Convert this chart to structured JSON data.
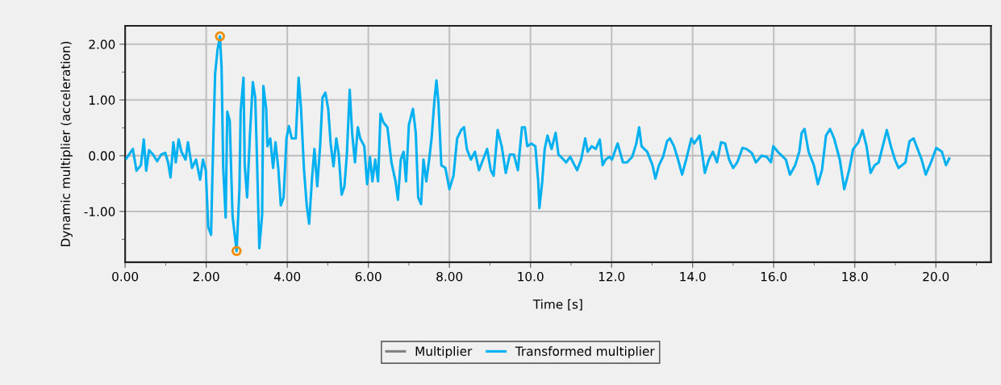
{
  "chart_data": {
    "type": "line",
    "xlabel": "Time [s]",
    "ylabel": "Dynamic multiplier (acceleration)",
    "xlim": [
      0,
      21.36
    ],
    "ylim": [
      -1.91,
      2.33
    ],
    "xticks": [
      {
        "value": 0,
        "label": "0.00"
      },
      {
        "value": 1,
        "label": null
      },
      {
        "value": 2,
        "label": "2.00"
      },
      {
        "value": 3,
        "label": null
      },
      {
        "value": 4,
        "label": "4.00"
      },
      {
        "value": 5,
        "label": null
      },
      {
        "value": 6,
        "label": "6.00"
      },
      {
        "value": 7,
        "label": null
      },
      {
        "value": 8,
        "label": "8.00"
      },
      {
        "value": 9,
        "label": null
      },
      {
        "value": 10,
        "label": "10.0"
      },
      {
        "value": 11,
        "label": null
      },
      {
        "value": 12,
        "label": "12.0"
      },
      {
        "value": 13,
        "label": null
      },
      {
        "value": 14,
        "label": "14.0"
      },
      {
        "value": 15,
        "label": null
      },
      {
        "value": 16,
        "label": "16.0"
      },
      {
        "value": 17,
        "label": null
      },
      {
        "value": 18,
        "label": "18.0"
      },
      {
        "value": 19,
        "label": null
      },
      {
        "value": 20,
        "label": "20.0"
      },
      {
        "value": 21,
        "label": null
      }
    ],
    "yticks": [
      {
        "value": -1.5,
        "label": null
      },
      {
        "value": -1,
        "label": "-1.00"
      },
      {
        "value": -0.5,
        "label": null
      },
      {
        "value": 0,
        "label": "0.00"
      },
      {
        "value": 0.5,
        "label": null
      },
      {
        "value": 1,
        "label": "1.00"
      },
      {
        "value": 1.5,
        "label": null
      },
      {
        "value": 2,
        "label": "2.00"
      }
    ],
    "grid": true,
    "legend": "bottom",
    "series": [
      {
        "name": "Multiplier",
        "color": "#808080"
      },
      {
        "name": "Transformed multiplier",
        "color": "#00b0f0",
        "x": [
          0.03,
          0.19,
          0.28,
          0.39,
          0.46,
          0.52,
          0.59,
          0.69,
          0.79,
          0.89,
          0.99,
          1.06,
          1.12,
          1.19,
          1.25,
          1.32,
          1.39,
          1.49,
          1.55,
          1.65,
          1.75,
          1.85,
          1.92,
          1.99,
          2.05,
          2.12,
          2.15,
          2.18,
          2.22,
          2.28,
          2.34,
          2.38,
          2.42,
          2.48,
          2.52,
          2.58,
          2.65,
          2.72,
          2.75,
          2.82,
          2.85,
          2.92,
          2.95,
          3.01,
          3.08,
          3.15,
          3.21,
          3.25,
          3.31,
          3.38,
          3.41,
          3.48,
          3.51,
          3.58,
          3.65,
          3.71,
          3.78,
          3.84,
          3.91,
          3.98,
          4.04,
          4.11,
          4.21,
          4.28,
          4.34,
          4.41,
          4.48,
          4.54,
          4.61,
          4.67,
          4.74,
          4.81,
          4.87,
          4.94,
          5.01,
          5.07,
          5.14,
          5.21,
          5.27,
          5.34,
          5.41,
          5.47,
          5.54,
          5.6,
          5.67,
          5.74,
          5.8,
          5.9,
          5.97,
          6.04,
          6.1,
          6.17,
          6.24,
          6.3,
          6.37,
          6.47,
          6.57,
          6.67,
          6.73,
          6.8,
          6.87,
          6.93,
          7.0,
          7.1,
          7.17,
          7.23,
          7.3,
          7.36,
          7.43,
          7.5,
          7.56,
          7.63,
          7.68,
          7.73,
          7.8,
          7.9,
          8.0,
          8.1,
          8.19,
          8.29,
          8.36,
          8.43,
          8.53,
          8.63,
          8.73,
          8.83,
          8.93,
          9.02,
          9.09,
          9.19,
          9.29,
          9.39,
          9.49,
          9.59,
          9.69,
          9.79,
          9.86,
          9.92,
          10.02,
          10.12,
          10.19,
          10.22,
          10.29,
          10.35,
          10.42,
          10.52,
          10.62,
          10.69,
          10.75,
          10.88,
          10.98,
          11.15,
          11.25,
          11.35,
          11.41,
          11.51,
          11.61,
          11.71,
          11.78,
          11.85,
          11.95,
          12.01,
          12.15,
          12.28,
          12.38,
          12.51,
          12.61,
          12.68,
          12.74,
          12.88,
          13.01,
          13.08,
          13.17,
          13.27,
          13.37,
          13.44,
          13.54,
          13.64,
          13.74,
          13.84,
          13.97,
          14.04,
          14.17,
          14.24,
          14.3,
          14.4,
          14.5,
          14.6,
          14.7,
          14.8,
          14.9,
          15.0,
          15.1,
          15.23,
          15.33,
          15.46,
          15.56,
          15.7,
          15.83,
          15.93,
          15.99,
          16.1,
          16.3,
          16.4,
          16.53,
          16.63,
          16.69,
          16.76,
          16.86,
          16.99,
          17.09,
          17.19,
          17.29,
          17.39,
          17.49,
          17.63,
          17.74,
          17.86,
          17.96,
          18.09,
          18.19,
          18.29,
          18.39,
          18.49,
          18.59,
          18.69,
          18.79,
          18.89,
          18.99,
          19.08,
          19.25,
          19.35,
          19.45,
          19.55,
          19.65,
          19.75,
          19.88,
          20.01,
          20.15,
          20.25,
          20.33
        ],
        "values": [
          -0.05,
          0.12,
          -0.27,
          -0.17,
          0.29,
          -0.27,
          0.1,
          0.02,
          -0.1,
          0.02,
          0.05,
          -0.12,
          -0.39,
          0.24,
          -0.12,
          0.29,
          0.07,
          -0.07,
          0.24,
          -0.22,
          -0.07,
          -0.43,
          -0.07,
          -0.26,
          -1.28,
          -1.42,
          -0.46,
          0.39,
          1.47,
          1.9,
          2.14,
          1.57,
          -0.22,
          -1.11,
          0.79,
          0.63,
          -1.08,
          -1.52,
          -1.71,
          -0.6,
          0.79,
          1.4,
          -0.17,
          -0.75,
          0.39,
          1.32,
          1.04,
          0.02,
          -1.66,
          -1.06,
          1.25,
          0.84,
          0.17,
          0.31,
          -0.22,
          0.24,
          -0.24,
          -0.89,
          -0.75,
          0.31,
          0.53,
          0.31,
          0.31,
          1.4,
          0.84,
          -0.22,
          -0.89,
          -1.22,
          -0.41,
          0.12,
          -0.55,
          0.17,
          1.04,
          1.13,
          0.84,
          0.22,
          -0.19,
          0.31,
          0.02,
          -0.7,
          -0.55,
          0.02,
          1.18,
          0.41,
          -0.12,
          0.51,
          0.31,
          0.17,
          -0.51,
          -0.02,
          -0.46,
          -0.07,
          -0.46,
          0.75,
          0.6,
          0.51,
          -0.12,
          -0.46,
          -0.79,
          -0.07,
          0.07,
          -0.46,
          0.55,
          0.84,
          0.41,
          -0.75,
          -0.87,
          -0.07,
          -0.46,
          -0.07,
          0.31,
          0.99,
          1.35,
          0.94,
          -0.17,
          -0.22,
          -0.6,
          -0.36,
          0.31,
          0.46,
          0.51,
          0.12,
          -0.07,
          0.07,
          -0.26,
          -0.07,
          0.12,
          -0.26,
          -0.36,
          0.46,
          0.17,
          -0.31,
          0.02,
          0.02,
          -0.26,
          0.51,
          0.51,
          0.17,
          0.22,
          0.17,
          -0.46,
          -0.94,
          -0.46,
          0.12,
          0.36,
          0.12,
          0.41,
          0.02,
          -0.02,
          -0.12,
          -0.02,
          -0.26,
          -0.07,
          0.31,
          0.07,
          0.17,
          0.12,
          0.29,
          -0.17,
          -0.07,
          -0.02,
          -0.07,
          0.22,
          -0.12,
          -0.12,
          -0.02,
          0.22,
          0.51,
          0.17,
          0.07,
          -0.17,
          -0.41,
          -0.17,
          -0.02,
          0.26,
          0.31,
          0.17,
          -0.07,
          -0.34,
          -0.07,
          0.31,
          0.22,
          0.36,
          0.02,
          -0.31,
          -0.07,
          0.07,
          -0.12,
          0.24,
          0.22,
          -0.07,
          -0.22,
          -0.12,
          0.14,
          0.12,
          0.05,
          -0.12,
          0.0,
          -0.02,
          -0.12,
          0.17,
          0.07,
          -0.07,
          -0.34,
          -0.17,
          0.07,
          0.41,
          0.48,
          0.07,
          -0.17,
          -0.51,
          -0.26,
          0.36,
          0.48,
          0.31,
          -0.07,
          -0.6,
          -0.26,
          0.12,
          0.24,
          0.46,
          0.17,
          -0.31,
          -0.17,
          -0.12,
          0.17,
          0.46,
          0.17,
          -0.07,
          -0.22,
          -0.12,
          0.26,
          0.31,
          0.12,
          -0.07,
          -0.34,
          -0.12,
          0.14,
          0.07,
          -0.17,
          -0.05
        ]
      },
      {
        "type": "scatter",
        "color": "#f08c00",
        "marker": "circle",
        "x": [
          2.34,
          2.75
        ],
        "values": [
          2.14,
          -1.71
        ]
      }
    ]
  }
}
